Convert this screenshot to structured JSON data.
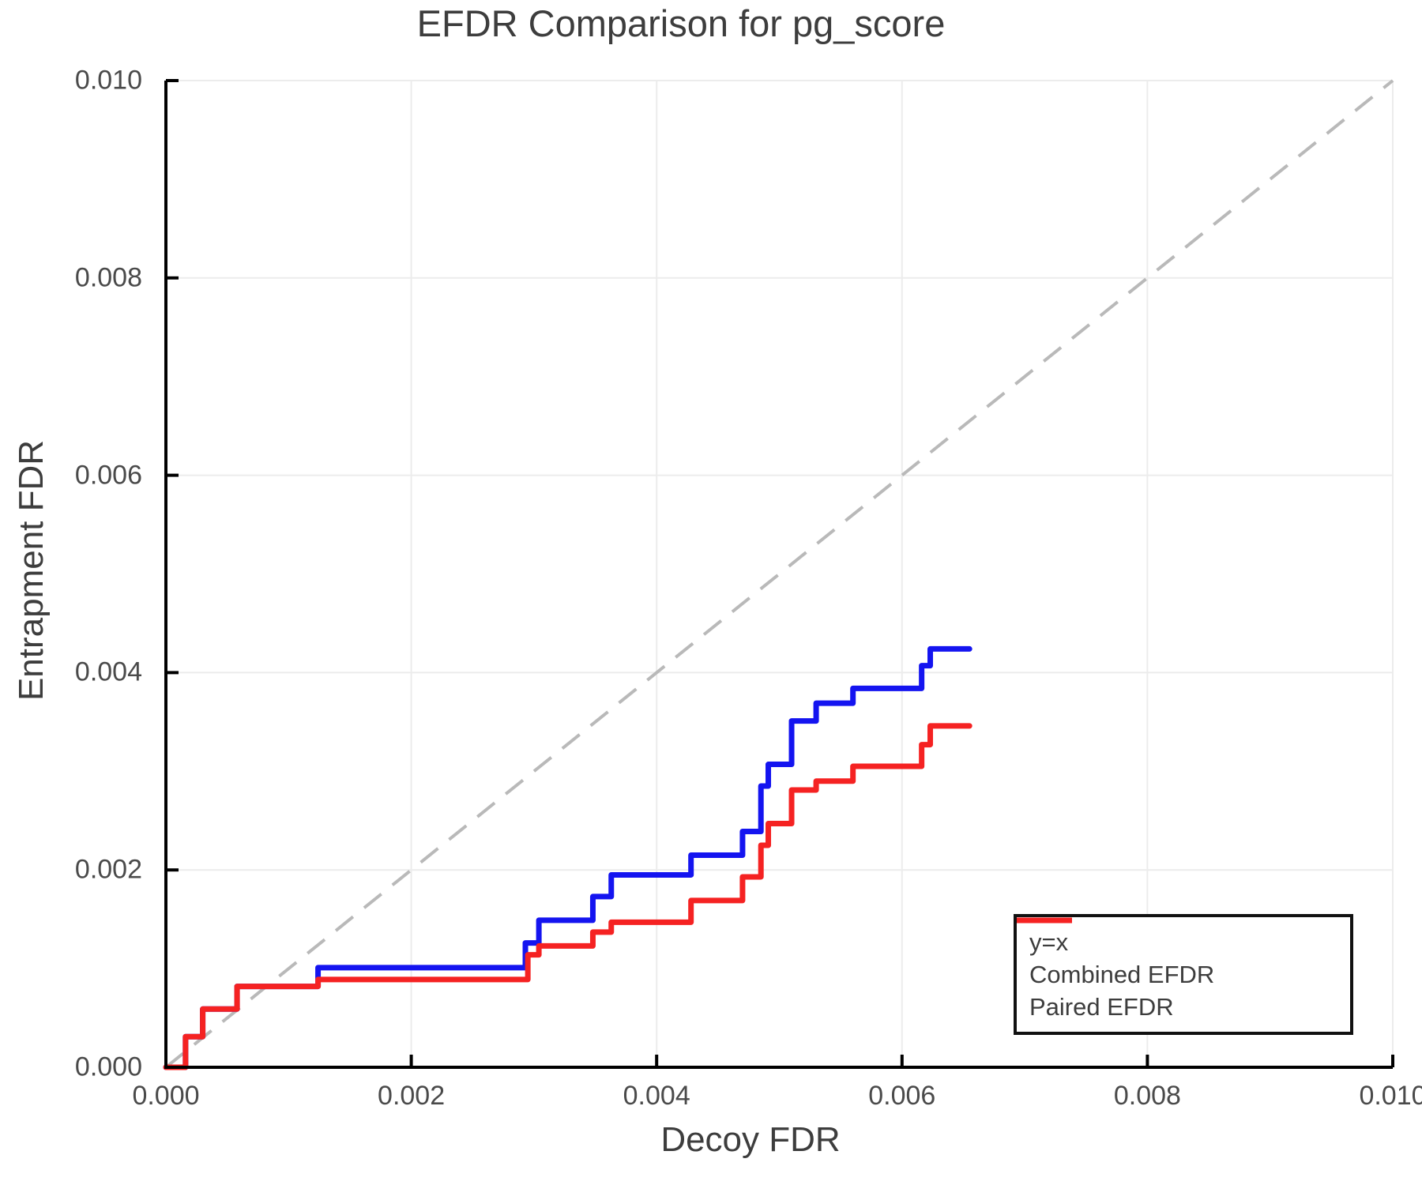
{
  "chart_data": {
    "type": "line",
    "title": "EFDR Comparison for pg_score",
    "xlabel": "Decoy FDR",
    "ylabel": "Entrapment FDR",
    "xlim": [
      0.0,
      0.01
    ],
    "ylim": [
      0.0,
      0.01
    ],
    "grid": true,
    "legend_position": "lower right",
    "xticks": {
      "values": [
        0.0,
        0.002,
        0.004,
        0.006,
        0.008,
        0.01
      ],
      "labels": [
        "0.000",
        "0.002",
        "0.004",
        "0.006",
        "0.008",
        "0.010"
      ]
    },
    "yticks": {
      "values": [
        0.0,
        0.002,
        0.004,
        0.006,
        0.008,
        0.01
      ],
      "labels": [
        "0.000",
        "0.002",
        "0.004",
        "0.006",
        "0.008",
        "0.010"
      ]
    },
    "series": [
      {
        "name": "y=x",
        "style": "dashed",
        "color": "#b9b9b9",
        "points": [
          [
            0.0,
            0.0
          ],
          [
            0.01,
            0.01
          ]
        ]
      },
      {
        "name": "Combined EFDR",
        "style": "step",
        "color": "#1414f0",
        "start": [
          0.0,
          0.0
        ],
        "steps": [
          [
            0.00016,
            0.00031
          ],
          [
            0.0003,
            0.00059
          ],
          [
            0.00058,
            0.00082
          ],
          [
            0.00124,
            0.00101
          ],
          [
            0.00293,
            0.00126
          ],
          [
            0.00304,
            0.00149
          ],
          [
            0.00348,
            0.00173
          ],
          [
            0.00363,
            0.00195
          ],
          [
            0.00428,
            0.00215
          ],
          [
            0.0047,
            0.00239
          ],
          [
            0.00485,
            0.00285
          ],
          [
            0.00491,
            0.00307
          ],
          [
            0.0051,
            0.00351
          ],
          [
            0.0053,
            0.00369
          ],
          [
            0.0056,
            0.00384
          ],
          [
            0.00616,
            0.00407
          ],
          [
            0.00623,
            0.00424
          ],
          [
            0.00655,
            0.00424
          ]
        ]
      },
      {
        "name": "Paired EFDR",
        "style": "step",
        "color": "#f52222",
        "start": [
          0.0,
          0.0
        ],
        "steps": [
          [
            0.00016,
            0.00031
          ],
          [
            0.0003,
            0.00059
          ],
          [
            0.00058,
            0.00082
          ],
          [
            0.00124,
            0.00089
          ],
          [
            0.00295,
            0.00114
          ],
          [
            0.00304,
            0.00123
          ],
          [
            0.00348,
            0.00137
          ],
          [
            0.00363,
            0.00147
          ],
          [
            0.00428,
            0.00169
          ],
          [
            0.0047,
            0.00193
          ],
          [
            0.00485,
            0.00225
          ],
          [
            0.00491,
            0.00247
          ],
          [
            0.0051,
            0.00281
          ],
          [
            0.0053,
            0.0029
          ],
          [
            0.0056,
            0.00305
          ],
          [
            0.00616,
            0.00327
          ],
          [
            0.00623,
            0.00346
          ],
          [
            0.00655,
            0.00346
          ]
        ]
      }
    ],
    "colors": {
      "grid": "#ececec",
      "spine": "#000000",
      "reference_line": "#b9b9b9",
      "combined": "#1414f0",
      "paired": "#f52222",
      "text": "#3d3d3d"
    }
  },
  "legend": {
    "entries": [
      {
        "label": "y=x"
      },
      {
        "label": "Combined EFDR"
      },
      {
        "label": "Paired EFDR"
      }
    ]
  }
}
